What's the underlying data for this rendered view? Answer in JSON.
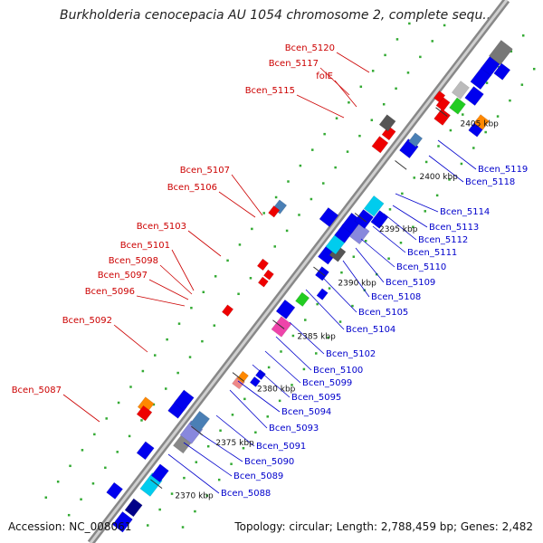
{
  "title": "Burkholderia cenocepacia AU 1054 chromosome 2, complete sequ...",
  "footer": {
    "accession": "Accession: NC_008061",
    "summary": "Topology: circular; Length: 2,788,459 bp; Genes: 2,482"
  },
  "colors": {
    "backbone": "#999999",
    "reverse_label": "#cc0000",
    "forward_label": "#0000cc",
    "ticks": "#2a8a2a"
  },
  "ticks": [
    "2370 kbp",
    "2375 kbp",
    "2380 kbp",
    "2385 kbp",
    "2390 kbp",
    "2395 kbp",
    "2400 kbp",
    "2405 kbp"
  ],
  "reverse_gene_labels": [
    "Bcen_5120",
    "Bcen_5117",
    "folE",
    "Bcen_5115",
    "Bcen_5107",
    "Bcen_5106",
    "Bcen_5103",
    "Bcen_5101",
    "Bcen_5098",
    "Bcen_5097",
    "Bcen_5096",
    "Bcen_5092",
    "Bcen_5087"
  ],
  "forward_gene_labels": [
    "Bcen_5119",
    "Bcen_5118",
    "Bcen_5114",
    "Bcen_5113",
    "Bcen_5112",
    "Bcen_5111",
    "Bcen_5110",
    "Bcen_5109",
    "Bcen_5108",
    "Bcen_5105",
    "Bcen_5104",
    "Bcen_5102",
    "Bcen_5100",
    "Bcen_5099",
    "Bcen_5095",
    "Bcen_5094",
    "Bcen_5093",
    "Bcen_5091",
    "Bcen_5090",
    "Bcen_5089",
    "Bcen_5088"
  ]
}
